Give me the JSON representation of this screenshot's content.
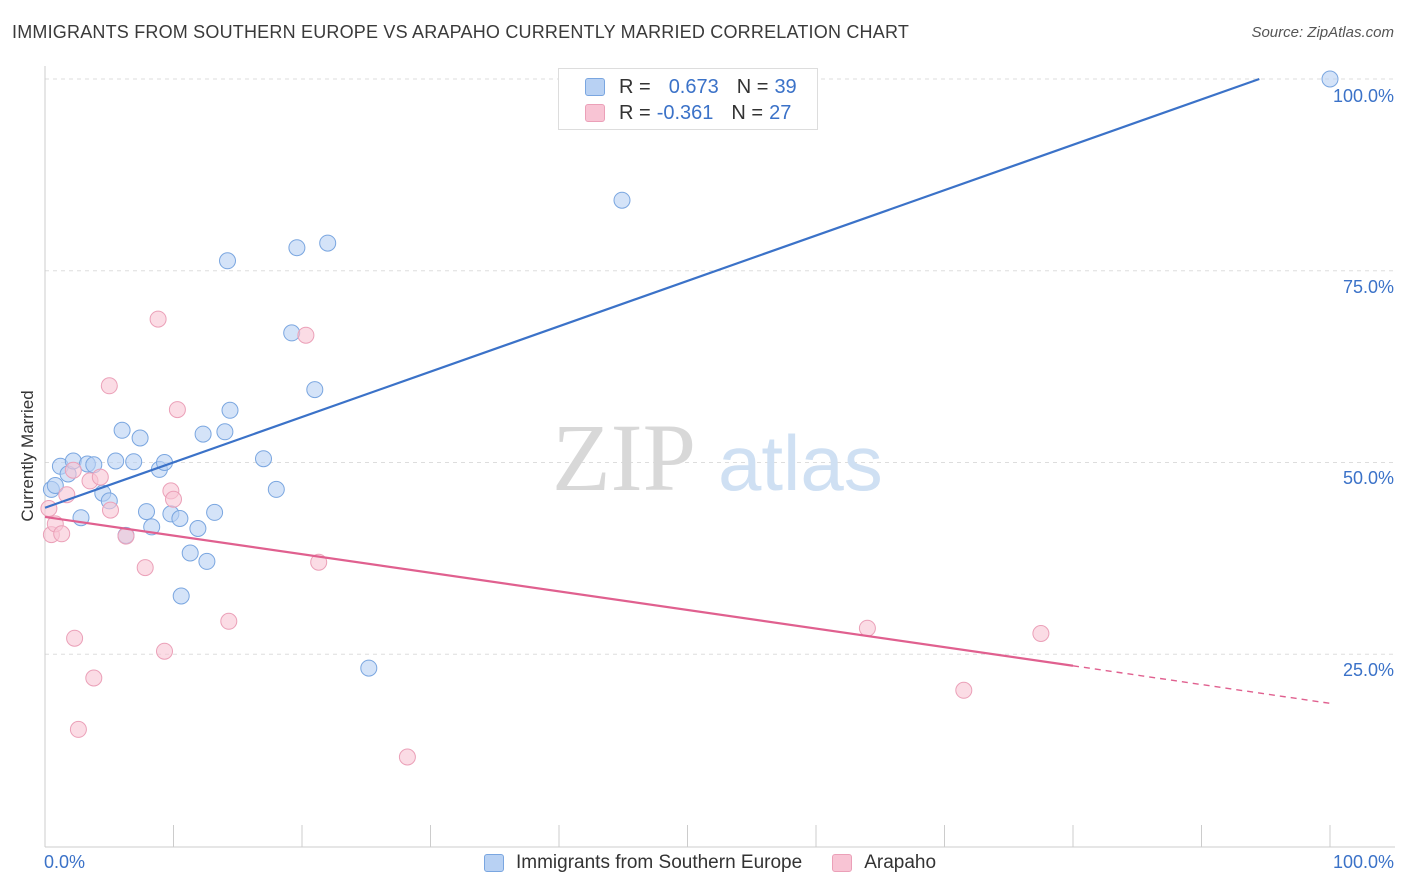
{
  "header": {
    "title": "IMMIGRANTS FROM SOUTHERN EUROPE VS ARAPAHO CURRENTLY MARRIED CORRELATION CHART",
    "source": "Source: ZipAtlas.com"
  },
  "watermark": {
    "zip": "ZIP",
    "atlas": "atlas"
  },
  "legend": {
    "r_label": "R =",
    "n_label": "N =",
    "series1": {
      "r": "0.673",
      "n": "39"
    },
    "series2": {
      "r": "-0.361",
      "n": "27"
    }
  },
  "colors": {
    "blue_fill": "#b8d1f3",
    "blue_stroke": "#7aa6e0",
    "blue_line": "#3b72c8",
    "pink_fill": "#f8c4d4",
    "pink_stroke": "#eba0b8",
    "pink_line": "#e0608f",
    "grid": "#dddddd",
    "tick_text": "#3b72c8"
  },
  "chart_data": {
    "type": "scatter",
    "title": "IMMIGRANTS FROM SOUTHERN EUROPE VS ARAPAHO CURRENTLY MARRIED CORRELATION CHART",
    "xlabel": "",
    "ylabel": "Currently Married",
    "xlim": [
      0,
      100
    ],
    "ylim": [
      3,
      101
    ],
    "x_tick_labels": [
      "0.0%",
      "100.0%"
    ],
    "y_tick_labels": [
      "25.0%",
      "50.0%",
      "75.0%",
      "100.0%"
    ],
    "y_ticks": [
      25,
      50,
      75,
      100
    ],
    "grid": true,
    "legend_position": "top-center",
    "series": [
      {
        "name": "Immigrants from Southern Europe",
        "color": "#3b72c8",
        "points": [
          [
            0.5,
            46.5
          ],
          [
            0.8,
            47.0
          ],
          [
            1.2,
            49.5
          ],
          [
            1.8,
            48.5
          ],
          [
            2.2,
            50.2
          ],
          [
            2.8,
            42.8
          ],
          [
            3.3,
            49.8
          ],
          [
            3.8,
            49.7
          ],
          [
            4.5,
            46.0
          ],
          [
            5.0,
            45.0
          ],
          [
            5.5,
            50.2
          ],
          [
            6.0,
            54.2
          ],
          [
            6.3,
            40.5
          ],
          [
            6.9,
            50.1
          ],
          [
            7.4,
            53.2
          ],
          [
            7.9,
            43.6
          ],
          [
            8.3,
            41.6
          ],
          [
            8.9,
            49.1
          ],
          [
            9.3,
            50.0
          ],
          [
            9.8,
            43.3
          ],
          [
            10.5,
            42.7
          ],
          [
            11.3,
            38.2
          ],
          [
            11.9,
            41.4
          ],
          [
            12.3,
            53.7
          ],
          [
            12.6,
            37.1
          ],
          [
            13.2,
            43.5
          ],
          [
            14.0,
            54.0
          ],
          [
            14.2,
            76.3
          ],
          [
            14.4,
            56.8
          ],
          [
            17.0,
            50.5
          ],
          [
            18.0,
            46.5
          ],
          [
            19.2,
            66.9
          ],
          [
            19.6,
            78.0
          ],
          [
            21.0,
            59.5
          ],
          [
            22.0,
            78.6
          ],
          [
            25.2,
            23.2
          ],
          [
            44.9,
            84.2
          ],
          [
            100.0,
            100.0
          ],
          [
            10.6,
            32.6
          ]
        ]
      },
      {
        "name": "Arapaho",
        "color": "#e0608f",
        "points": [
          [
            0.3,
            44.0
          ],
          [
            0.5,
            40.6
          ],
          [
            0.8,
            42.0
          ],
          [
            1.3,
            40.7
          ],
          [
            1.7,
            45.8
          ],
          [
            2.2,
            49.0
          ],
          [
            2.3,
            27.1
          ],
          [
            2.6,
            15.2
          ],
          [
            3.5,
            47.6
          ],
          [
            3.8,
            21.9
          ],
          [
            4.3,
            48.1
          ],
          [
            5.0,
            60.0
          ],
          [
            5.1,
            43.8
          ],
          [
            6.3,
            40.4
          ],
          [
            7.8,
            36.3
          ],
          [
            8.8,
            68.7
          ],
          [
            9.3,
            25.4
          ],
          [
            9.8,
            46.3
          ],
          [
            10.0,
            45.2
          ],
          [
            10.3,
            56.9
          ],
          [
            14.3,
            29.3
          ],
          [
            20.3,
            66.6
          ],
          [
            21.3,
            37.0
          ],
          [
            28.2,
            11.6
          ],
          [
            64.0,
            28.4
          ],
          [
            71.5,
            20.3
          ],
          [
            77.5,
            27.7
          ]
        ]
      }
    ],
    "trendlines": [
      {
        "series": "Immigrants from Southern Europe",
        "x": [
          0,
          94.5
        ],
        "y": [
          44.1,
          100.0
        ]
      },
      {
        "series": "Arapaho",
        "x": [
          0,
          80
        ],
        "y": [
          42.9,
          23.5
        ],
        "dashed_x": [
          80,
          100
        ],
        "dashed_y": [
          23.5,
          18.6
        ]
      }
    ]
  },
  "bottom_legend": {
    "series1_label": "Immigrants from Southern Europe",
    "series2_label": "Arapaho"
  }
}
